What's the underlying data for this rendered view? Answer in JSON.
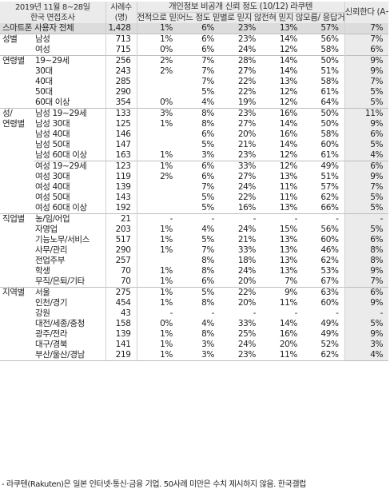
{
  "header": {
    "survey_period": "2019년 11월 8~28일",
    "survey_method": "한국 면접조사",
    "cases": "사례수",
    "cases_unit": "(명)",
    "group_title": "개인정보 비공개 신뢰 정도 (10/12) 라쿠텐",
    "col_a": "전적으로 믿는다 (A)",
    "col_b": "어느 정도 믿는 편 (B)",
    "col_c": "별로 믿지 않는 편",
    "col_d": "전혀 믿지 않는다",
    "col_e": "모름/ 응답거절",
    "col_f": "신뢰한다 (A+B)"
  },
  "rows": [
    {
      "g": "스마트폰 사용자 전체",
      "s": "",
      "n": "1,428",
      "a": "1%",
      "b": "6%",
      "c": "23%",
      "d": "13%",
      "e": "57%",
      "f": "7%"
    },
    {
      "g": "성별",
      "s": "남성",
      "n": "713",
      "a": "1%",
      "b": "6%",
      "c": "23%",
      "d": "14%",
      "e": "56%",
      "f": "7%"
    },
    {
      "g": "",
      "s": "여성",
      "n": "715",
      "a": "0%",
      "b": "6%",
      "c": "24%",
      "d": "12%",
      "e": "58%",
      "f": "6%"
    },
    {
      "g": "연령별",
      "s": "19~29세",
      "n": "256",
      "a": "2%",
      "b": "7%",
      "c": "28%",
      "d": "14%",
      "e": "50%",
      "f": "9%"
    },
    {
      "g": "",
      "s": "30대",
      "n": "243",
      "a": "2%",
      "b": "7%",
      "c": "27%",
      "d": "14%",
      "e": "51%",
      "f": "9%"
    },
    {
      "g": "",
      "s": "40대",
      "n": "285",
      "a": "",
      "b": "7%",
      "c": "22%",
      "d": "13%",
      "e": "58%",
      "f": "7%"
    },
    {
      "g": "",
      "s": "50대",
      "n": "290",
      "a": "",
      "b": "5%",
      "c": "22%",
      "d": "12%",
      "e": "61%",
      "f": "5%"
    },
    {
      "g": "",
      "s": "60대 이상",
      "n": "354",
      "a": "0%",
      "b": "4%",
      "c": "19%",
      "d": "12%",
      "e": "64%",
      "f": "5%"
    },
    {
      "g": "성/",
      "s": "남성 19~29세",
      "n": "133",
      "a": "3%",
      "b": "8%",
      "c": "23%",
      "d": "16%",
      "e": "50%",
      "f": "11%"
    },
    {
      "g": "연령별",
      "s": "남성 30대",
      "n": "125",
      "a": "1%",
      "b": "8%",
      "c": "27%",
      "d": "14%",
      "e": "50%",
      "f": "9%"
    },
    {
      "g": "",
      "s": "남성 40대",
      "n": "146",
      "a": "",
      "b": "6%",
      "c": "20%",
      "d": "16%",
      "e": "58%",
      "f": "6%"
    },
    {
      "g": "",
      "s": "남성 50대",
      "n": "147",
      "a": "",
      "b": "5%",
      "c": "21%",
      "d": "14%",
      "e": "60%",
      "f": "5%"
    },
    {
      "g": "",
      "s": "남성 60대 이상",
      "n": "163",
      "a": "1%",
      "b": "3%",
      "c": "23%",
      "d": "12%",
      "e": "61%",
      "f": "4%"
    },
    {
      "g": "",
      "s": "여성 19~29세",
      "n": "123",
      "a": "1%",
      "b": "6%",
      "c": "33%",
      "d": "12%",
      "e": "49%",
      "f": "6%"
    },
    {
      "g": "",
      "s": "여성 30대",
      "n": "119",
      "a": "2%",
      "b": "6%",
      "c": "27%",
      "d": "13%",
      "e": "51%",
      "f": "9%"
    },
    {
      "g": "",
      "s": "여성 40대",
      "n": "139",
      "a": "",
      "b": "7%",
      "c": "24%",
      "d": "11%",
      "e": "57%",
      "f": "7%"
    },
    {
      "g": "",
      "s": "여성 50대",
      "n": "143",
      "a": "",
      "b": "5%",
      "c": "22%",
      "d": "11%",
      "e": "62%",
      "f": "5%"
    },
    {
      "g": "",
      "s": "여성 60대 이상",
      "n": "192",
      "a": "",
      "b": "5%",
      "c": "16%",
      "d": "13%",
      "e": "66%",
      "f": "5%"
    },
    {
      "g": "직업별",
      "s": "농/임/어업",
      "n": "21",
      "a": "-",
      "b": "-",
      "c": "-",
      "d": "-",
      "e": "-",
      "f": "-"
    },
    {
      "g": "",
      "s": "자영업",
      "n": "203",
      "a": "1%",
      "b": "4%",
      "c": "24%",
      "d": "15%",
      "e": "56%",
      "f": "5%"
    },
    {
      "g": "",
      "s": "기능노무/서비스",
      "n": "517",
      "a": "1%",
      "b": "5%",
      "c": "21%",
      "d": "13%",
      "e": "60%",
      "f": "6%"
    },
    {
      "g": "",
      "s": "사무/관리",
      "n": "290",
      "a": "1%",
      "b": "7%",
      "c": "33%",
      "d": "13%",
      "e": "46%",
      "f": "8%"
    },
    {
      "g": "",
      "s": "전업주부",
      "n": "257",
      "a": "",
      "b": "8%",
      "c": "18%",
      "d": "13%",
      "e": "62%",
      "f": "8%"
    },
    {
      "g": "",
      "s": "학생",
      "n": "70",
      "a": "1%",
      "b": "8%",
      "c": "24%",
      "d": "13%",
      "e": "53%",
      "f": "9%"
    },
    {
      "g": "",
      "s": "무직/은퇴/기타",
      "n": "70",
      "a": "1%",
      "b": "6%",
      "c": "20%",
      "d": "7%",
      "e": "67%",
      "f": "7%"
    },
    {
      "g": "지역별",
      "s": "서울",
      "n": "275",
      "a": "1%",
      "b": "5%",
      "c": "22%",
      "d": "9%",
      "e": "63%",
      "f": "6%"
    },
    {
      "g": "",
      "s": "인천/경기",
      "n": "454",
      "a": "1%",
      "b": "8%",
      "c": "20%",
      "d": "11%",
      "e": "60%",
      "f": "9%"
    },
    {
      "g": "",
      "s": "강원",
      "n": "43",
      "a": "-",
      "b": "-",
      "c": "-",
      "d": "-",
      "e": "-",
      "f": "-"
    },
    {
      "g": "",
      "s": "대전/세종/충청",
      "n": "158",
      "a": "0%",
      "b": "4%",
      "c": "33%",
      "d": "14%",
      "e": "49%",
      "f": "5%"
    },
    {
      "g": "",
      "s": "광주/전라",
      "n": "139",
      "a": "1%",
      "b": "8%",
      "c": "25%",
      "d": "16%",
      "e": "49%",
      "f": "9%"
    },
    {
      "g": "",
      "s": "대구/경북",
      "n": "141",
      "a": "1%",
      "b": "3%",
      "c": "24%",
      "d": "20%",
      "e": "52%",
      "f": "3%"
    },
    {
      "g": "",
      "s": "부산/울산/경남",
      "n": "219",
      "a": "1%",
      "b": "3%",
      "c": "23%",
      "d": "11%",
      "e": "62%",
      "f": "4%"
    }
  ],
  "footnote": "- 라쿠텐(Rakuten)은 일본 인터넷·통신·금융 기업. 50사례 미만은 수치 제시하지 않음. 한국갤럽"
}
